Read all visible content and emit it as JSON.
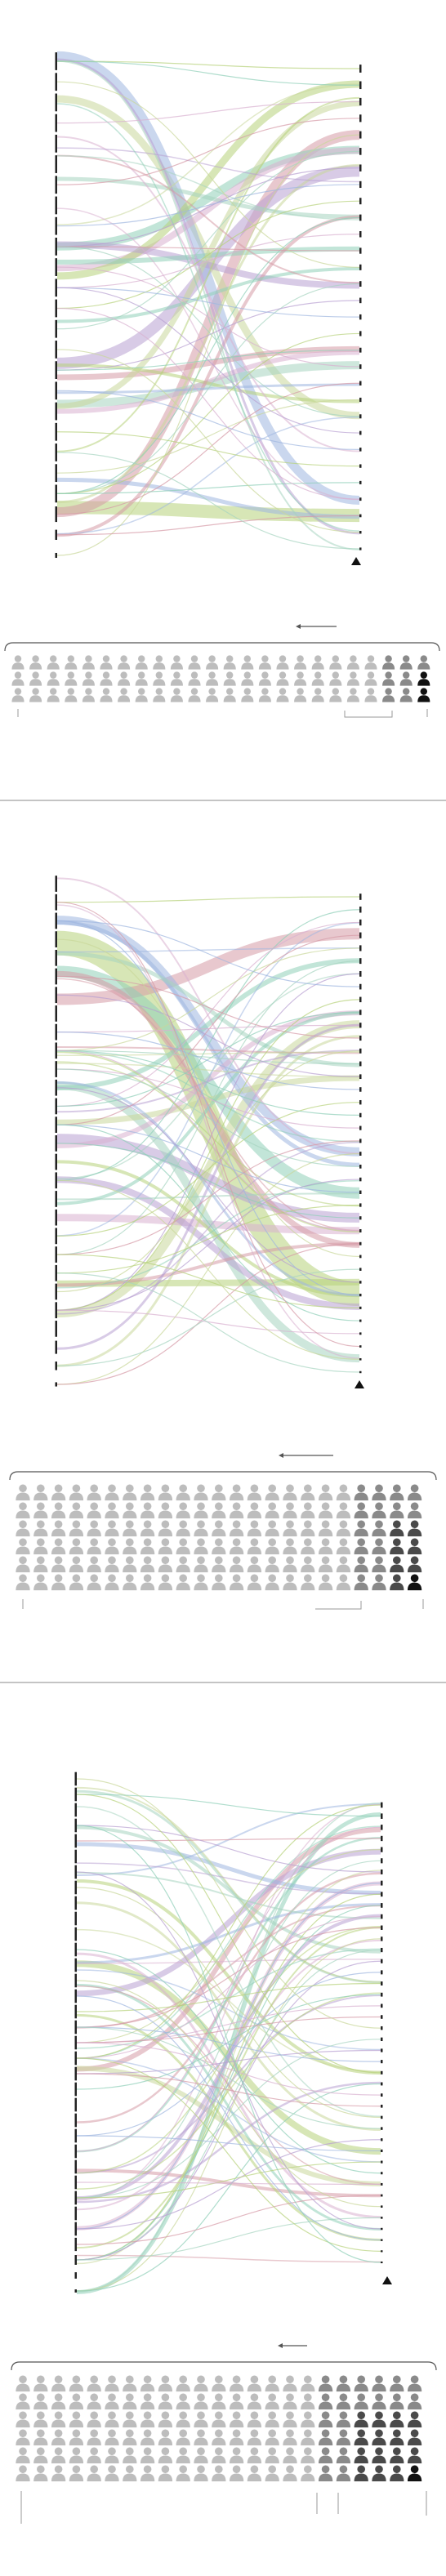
{
  "colors": {
    "flow_palette": [
      "#b7d27a",
      "#d59aa6",
      "#b8a0d2",
      "#8fcfb8",
      "#c9d79a",
      "#9fb6e0",
      "#d8b0d0",
      "#a6d4c0"
    ],
    "bar": "#222222",
    "divider": "#888888",
    "person_light": "#bdbdbd",
    "person_mid": "#8a8a8a",
    "person_dark": "#4a4a4a",
    "person_black": "#111111"
  },
  "icons": [
    "triangle-marker-icon",
    "arrow-left-icon",
    "person-icon"
  ],
  "panels": [
    {
      "flow_diagram": {
        "left_nodes": 25,
        "right_nodes": 30,
        "flow_widths": [
          16,
          12,
          14,
          10,
          9,
          11,
          8,
          10,
          9,
          7,
          8,
          6,
          7,
          5,
          6,
          5,
          4,
          4,
          3,
          4,
          3,
          3,
          2,
          2,
          2,
          2,
          1.5,
          1.5,
          1.5,
          1.5,
          1.5,
          1.5
        ]
      },
      "people_grid": {
        "rows": 3,
        "cols": 24,
        "mid_count": 3,
        "dark_count": 1,
        "black_count": 1
      }
    },
    {
      "flow_diagram": {
        "left_nodes": 28,
        "right_nodes": 38,
        "flow_widths": [
          30,
          14,
          12,
          14,
          10,
          11,
          9,
          10,
          8,
          7,
          8,
          6,
          7,
          5,
          6,
          5,
          4,
          4,
          3,
          4,
          3,
          3,
          2,
          2,
          2,
          2,
          2,
          1.5,
          1.5,
          1.5,
          1.5,
          1.5,
          1.5,
          1.5,
          1.5,
          1.5,
          1.5,
          1.5
        ]
      },
      "people_grid": {
        "rows": 6,
        "cols": 23,
        "mid_count": 4,
        "dark_count": 2,
        "black_count": 1
      }
    },
    {
      "flow_diagram": {
        "left_nodes": 34,
        "right_nodes": 42,
        "flow_widths": [
          8,
          6,
          7,
          5,
          6,
          5,
          5,
          4,
          4,
          4,
          4,
          3,
          3,
          3,
          3,
          3,
          3,
          2.5,
          2.5,
          2.5,
          2,
          2,
          2,
          2,
          2,
          2,
          2,
          1.5,
          1.5,
          1.5,
          1.5,
          1.5,
          1.5,
          1.5,
          1.5,
          1.5,
          1.5,
          1.5,
          1.5,
          1.5,
          1.5,
          1.5
        ]
      },
      "people_grid": {
        "rows": 6,
        "cols": 23,
        "mid_count": 6,
        "dark_count": 4,
        "black_count": 1
      }
    }
  ]
}
